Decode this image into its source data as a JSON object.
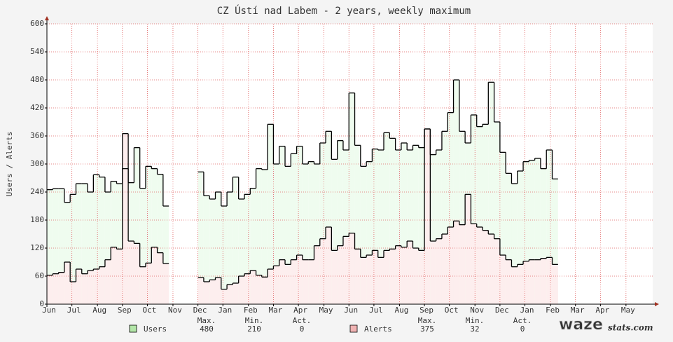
{
  "chart_data": {
    "type": "step",
    "title": "CZ Ústí nad Labem - 2 years, weekly maximum",
    "y_label": "Users / Alerts",
    "x": [
      0,
      1,
      2,
      3,
      4,
      5,
      6,
      7,
      8,
      9,
      10,
      11,
      12,
      13,
      14,
      15,
      16,
      17,
      18,
      19,
      20,
      21,
      22,
      23,
      24,
      25,
      26,
      27,
      28,
      29,
      30,
      31,
      32,
      33,
      34,
      35,
      36,
      37,
      38,
      39,
      40,
      41,
      42,
      43,
      44,
      45,
      46,
      47,
      48,
      49,
      50,
      51,
      52,
      53,
      54,
      55,
      56,
      57,
      58,
      59,
      60,
      61,
      62,
      63,
      64,
      65,
      66,
      67,
      68,
      69,
      70,
      71,
      72,
      73,
      74,
      75,
      76,
      77,
      78,
      79,
      80,
      81,
      82,
      83,
      84,
      85,
      86,
      87
    ],
    "xlim": [
      0,
      104.3
    ],
    "xticks": [
      {
        "value": 0,
        "label": "Jun"
      },
      {
        "value": 4.3,
        "label": "Jul"
      },
      {
        "value": 8.7,
        "label": "Aug"
      },
      {
        "value": 13,
        "label": "Sep"
      },
      {
        "value": 17.3,
        "label": "Oct"
      },
      {
        "value": 21.7,
        "label": "Nov"
      },
      {
        "value": 26,
        "label": "Dec"
      },
      {
        "value": 30.3,
        "label": "Jan"
      },
      {
        "value": 34.7,
        "label": "Feb"
      },
      {
        "value": 39,
        "label": "Mar"
      },
      {
        "value": 43.3,
        "label": "Apr"
      },
      {
        "value": 47.7,
        "label": "May"
      },
      {
        "value": 52,
        "label": "Jun"
      },
      {
        "value": 56.3,
        "label": "Jul"
      },
      {
        "value": 60.7,
        "label": "Aug"
      },
      {
        "value": 65,
        "label": "Sep"
      },
      {
        "value": 69.3,
        "label": "Oct"
      },
      {
        "value": 73.7,
        "label": "Nov"
      },
      {
        "value": 78,
        "label": "Dec"
      },
      {
        "value": 82.3,
        "label": "Jan"
      },
      {
        "value": 86.7,
        "label": "Feb"
      },
      {
        "value": 91,
        "label": "Mar"
      },
      {
        "value": 95.3,
        "label": "Apr"
      },
      {
        "value": 99.7,
        "label": "May"
      }
    ],
    "ylim": [
      0,
      600
    ],
    "yticks": [
      0,
      60,
      120,
      180,
      240,
      300,
      360,
      420,
      480,
      540,
      600
    ],
    "grid": true,
    "series": [
      {
        "name": "Users",
        "color": "#000000",
        "fill": "#effcef",
        "legend_color": "#b3e6a8",
        "values": [
          245,
          247,
          247,
          218,
          235,
          258,
          258,
          240,
          277,
          272,
          240,
          263,
          258,
          290,
          260,
          335,
          248,
          295,
          290,
          278,
          210,
          null,
          null,
          null,
          null,
          null,
          283,
          232,
          225,
          240,
          210,
          240,
          272,
          225,
          235,
          248,
          290,
          288,
          385,
          300,
          338,
          295,
          322,
          338,
          300,
          305,
          300,
          345,
          370,
          310,
          350,
          330,
          452,
          340,
          295,
          305,
          332,
          330,
          367,
          355,
          330,
          345,
          330,
          340,
          335,
          375,
          320,
          330,
          370,
          410,
          480,
          370,
          345,
          405,
          380,
          385,
          475,
          390,
          325,
          280,
          258,
          285,
          305,
          308,
          312,
          290,
          330,
          268
        ],
        "max": 480,
        "min": 210,
        "act": 0
      },
      {
        "name": "Alerts",
        "color": "#000000",
        "fill": "#fdeeee",
        "legend_color": "#f0b3b3",
        "values": [
          62,
          65,
          68,
          90,
          48,
          75,
          65,
          72,
          75,
          80,
          95,
          122,
          118,
          365,
          135,
          130,
          80,
          88,
          122,
          110,
          87,
          null,
          null,
          null,
          null,
          null,
          57,
          48,
          52,
          57,
          32,
          42,
          45,
          60,
          65,
          72,
          62,
          58,
          75,
          82,
          95,
          85,
          95,
          105,
          95,
          95,
          125,
          140,
          165,
          115,
          125,
          145,
          152,
          118,
          100,
          105,
          115,
          100,
          115,
          118,
          125,
          122,
          135,
          120,
          115,
          375,
          135,
          140,
          150,
          165,
          178,
          170,
          235,
          172,
          165,
          158,
          150,
          140,
          105,
          95,
          80,
          85,
          92,
          95,
          95,
          98,
          100,
          85
        ],
        "max": 375,
        "min": 32,
        "act": 0
      }
    ],
    "legend_headers": [
      "Max.",
      "Min.",
      "Act."
    ],
    "logo": [
      "waze",
      "stats.com"
    ]
  }
}
